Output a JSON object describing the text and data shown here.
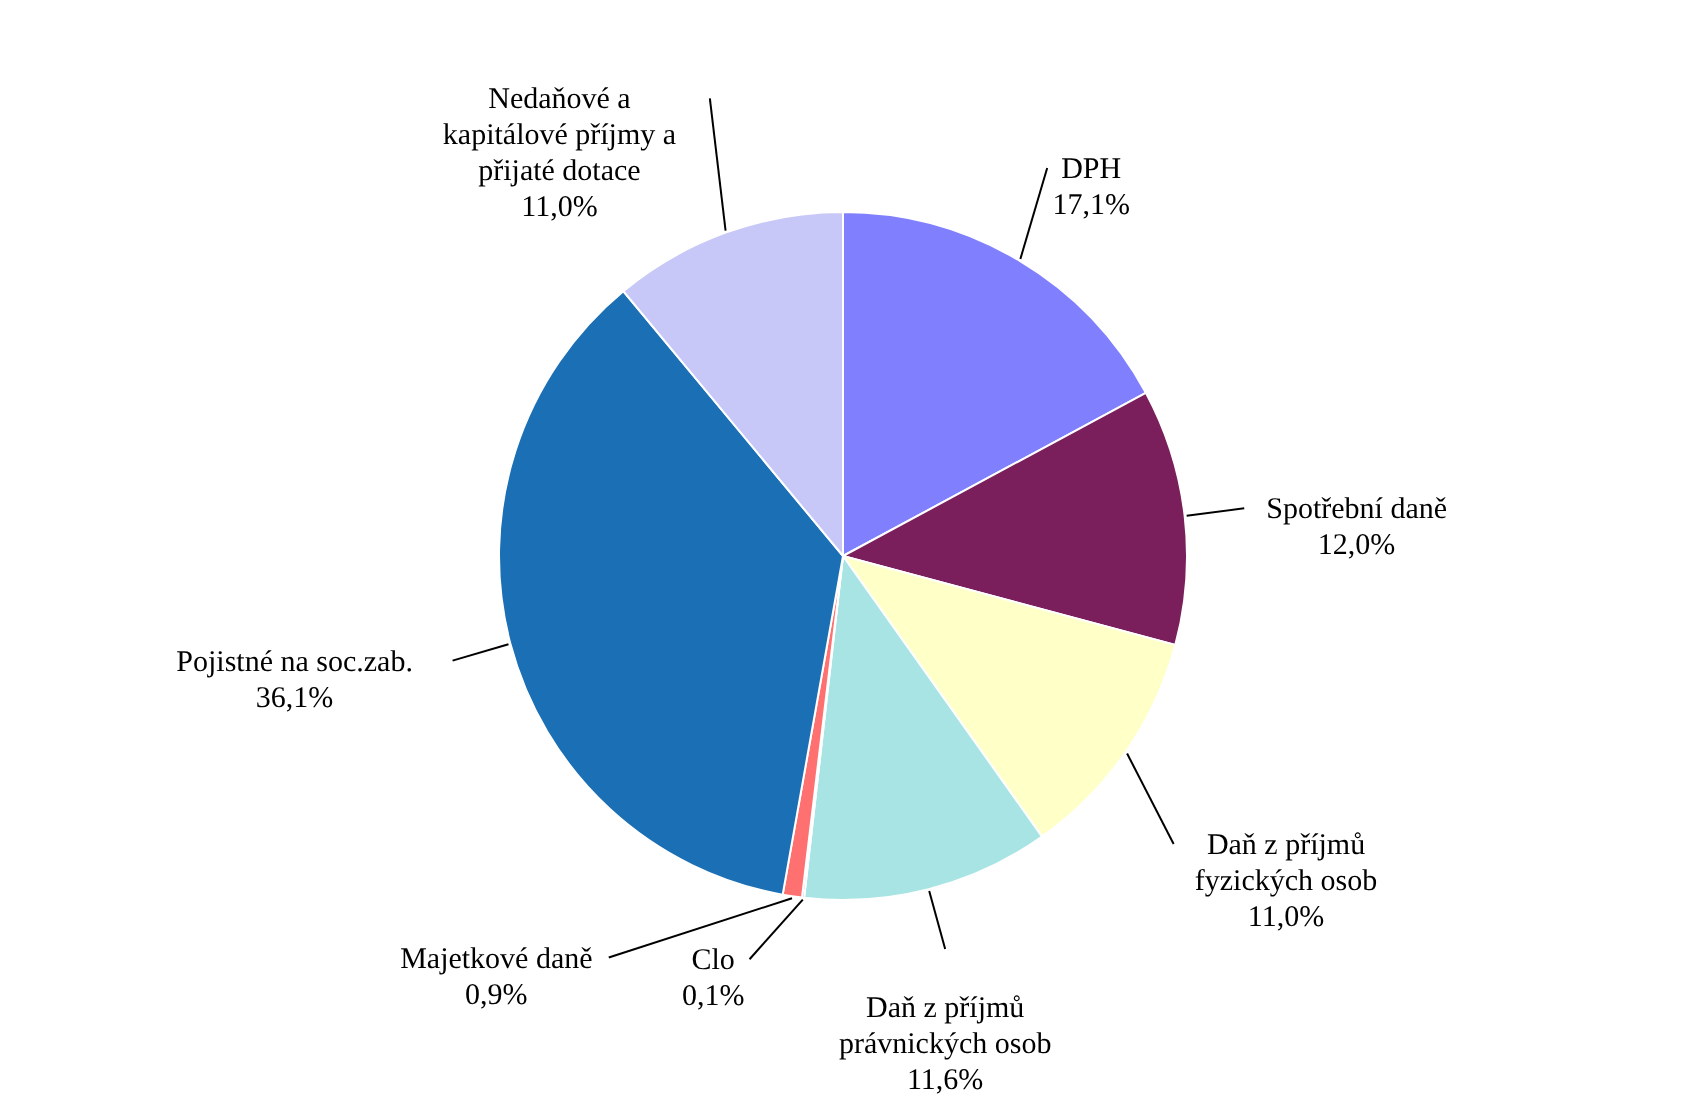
{
  "chart_data": {
    "type": "pie",
    "categories": [
      "DPH",
      "Spotřební daně",
      "Daň z příjmů fyzických osob",
      "Daň z příjmů právnických osob",
      "Clo",
      "Majetkové daně",
      "Pojistné na soc.zab.",
      "Nedaňové  a kapitálové příjmy a přijaté dotace"
    ],
    "values": [
      17.1,
      12.0,
      11.0,
      11.6,
      0.1,
      0.9,
      36.1,
      11.0
    ],
    "value_labels": [
      "17,1%",
      "12,0%",
      "11,0%",
      "11,6%",
      "0,1%",
      "0,9%",
      "36,1%",
      "11,0%"
    ],
    "colors": [
      "#8080ff",
      "#7a1f5c",
      "#ffffc8",
      "#a8e4e4",
      "#660066",
      "#ff7070",
      "#1a6fb5",
      "#c8c8f8"
    ]
  }
}
